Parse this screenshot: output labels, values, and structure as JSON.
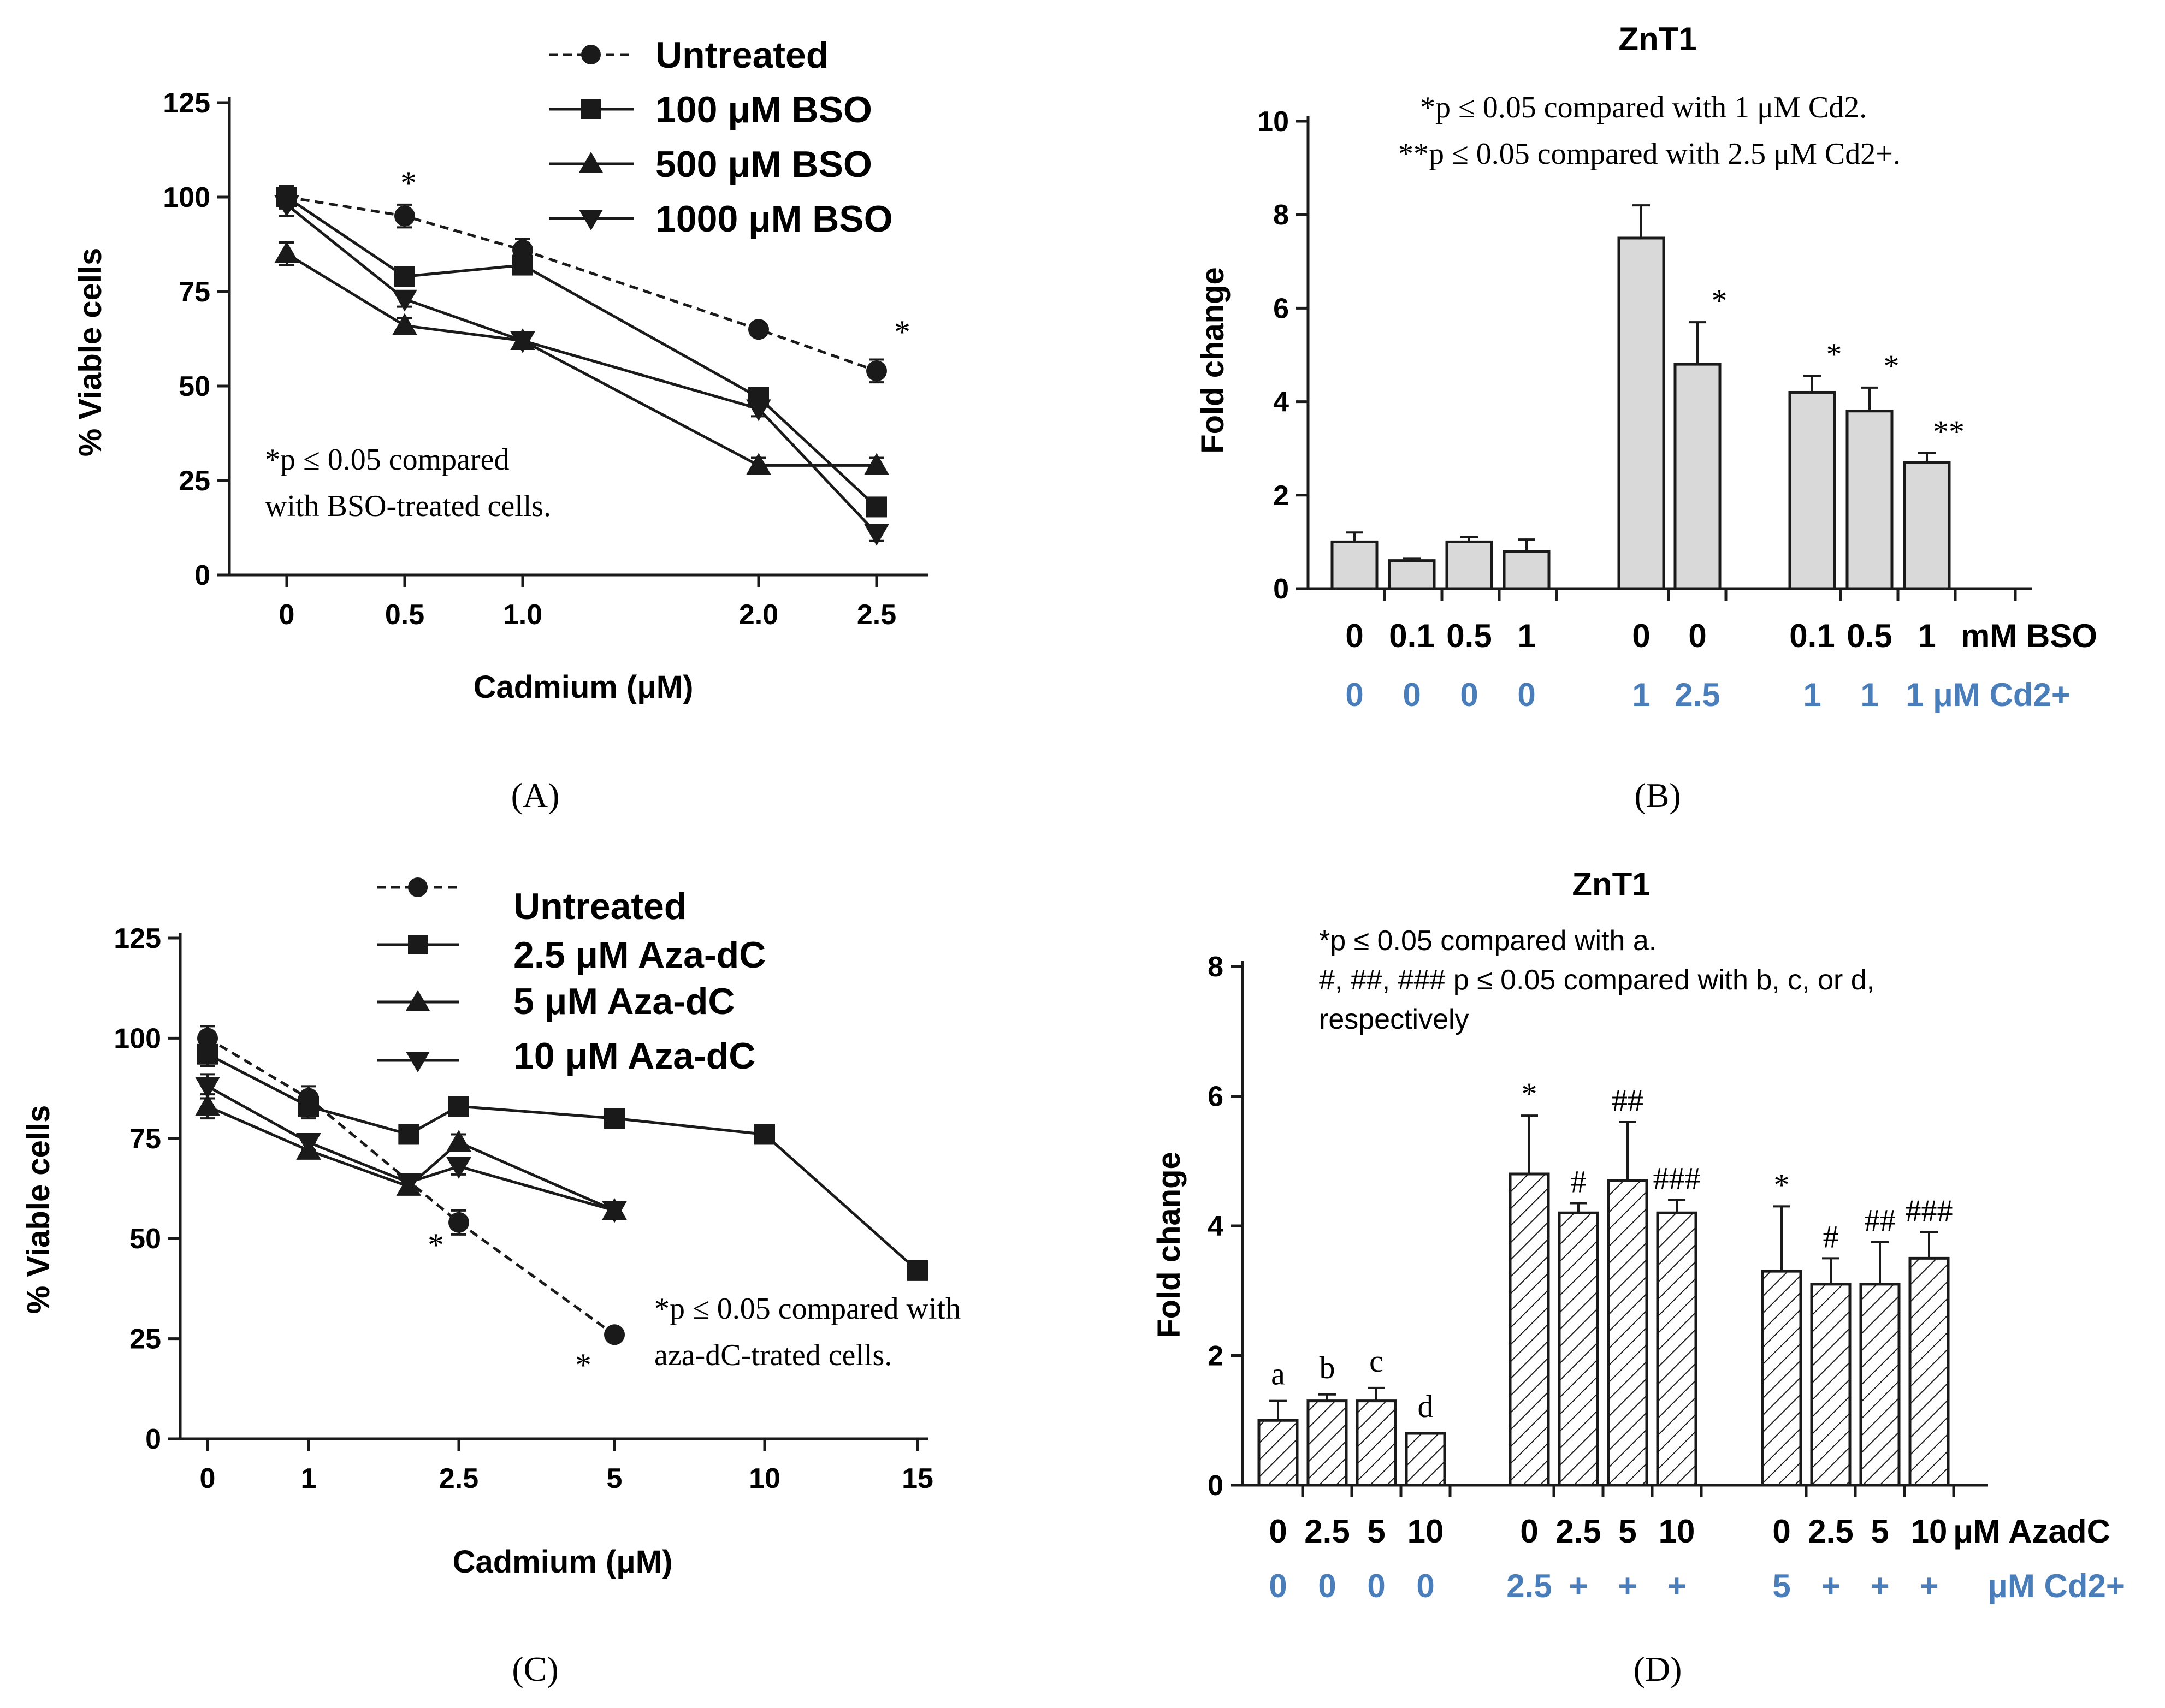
{
  "colors": {
    "ink": "#1a1a1a",
    "bar_fill": "#d9d9d9",
    "cd_label": "#4a7ebb"
  },
  "panels": {
    "A": {
      "label": "(A)",
      "annotation": [
        "*p ≤ 0.05 compared",
        "with BSO-treated cells."
      ],
      "star_marks": [
        "*",
        "*"
      ]
    },
    "B": {
      "label": "(B)",
      "annotation": [
        "*p ≤ 0.05 compared with 1 μM Cd2.",
        "**p ≤ 0.05 compared with 2.5 μM Cd2+."
      ],
      "bso_row": [
        "0",
        "0.1",
        "0.5",
        "1",
        "0",
        "0",
        "0.1",
        "0.5",
        "1",
        "mM BSO"
      ],
      "cd_row": [
        "0",
        "0",
        "0",
        "0",
        "1",
        "2.5",
        "1",
        "1",
        "1 μM Cd2+"
      ]
    },
    "C": {
      "label": "(C)",
      "annotation": [
        "*p ≤ 0.05 compared with",
        "aza-dC-trated cells."
      ],
      "star_marks": [
        "*",
        "*"
      ]
    },
    "D": {
      "label": "(D)",
      "annotation": [
        "*p ≤ 0.05 compared with a.",
        "#, ##, ### p ≤ 0.05 compared with b, c, or d,",
        "respectively"
      ],
      "aza_row": [
        "0",
        "2.5",
        "5",
        "10",
        "0",
        "2.5",
        "5",
        "10",
        "0",
        "2.5",
        "5",
        "10",
        "μM AzadC"
      ],
      "cd_row": [
        "0",
        "0",
        "0",
        "0",
        "2.5",
        "+",
        "+",
        "+",
        "5",
        "+",
        "+",
        "+",
        "μM Cd2+"
      ]
    }
  },
  "chart_data": [
    {
      "id": "A",
      "type": "line",
      "title": "",
      "xlabel": "Cadmium (μM)",
      "ylabel": "% Viable cells",
      "x": [
        0,
        0.5,
        1.0,
        2.0,
        2.5
      ],
      "x_tick_labels": [
        "0",
        "0.5",
        "1.0",
        "2.0",
        "2.5"
      ],
      "y_tick_labels": [
        "0",
        "25",
        "50",
        "75",
        "100",
        "125"
      ],
      "xlim": [
        -0.25,
        2.65
      ],
      "ylim": [
        0,
        125
      ],
      "legend_position": "top-right",
      "series": [
        {
          "name": "Untreated",
          "marker": "circle",
          "dashed": true,
          "values": [
            100,
            95,
            86,
            65,
            54
          ],
          "errors": [
            3,
            3,
            3,
            0,
            3
          ]
        },
        {
          "name": "100 μM BSO",
          "marker": "square",
          "dashed": false,
          "values": [
            100,
            79,
            82,
            47,
            18
          ],
          "errors": [
            3,
            2,
            2,
            2,
            2
          ]
        },
        {
          "name": "500 μM BSO",
          "marker": "triangle-up",
          "dashed": false,
          "values": [
            85,
            66,
            62,
            29,
            29
          ],
          "errors": [
            3,
            2,
            2,
            2,
            2
          ]
        },
        {
          "name": "1000 μM BSO",
          "marker": "triangle-down",
          "dashed": false,
          "values": [
            98,
            73,
            62,
            44,
            11
          ],
          "errors": [
            3,
            2,
            2,
            2,
            2
          ]
        }
      ]
    },
    {
      "id": "B",
      "type": "bar",
      "title": "ZnT1",
      "xlabel": "",
      "ylabel": "Fold change",
      "y_tick_labels": [
        "0",
        "2",
        "4",
        "6",
        "8",
        "10"
      ],
      "ylim": [
        0,
        10
      ],
      "values": [
        1.0,
        0.6,
        1.0,
        0.8,
        7.5,
        4.8,
        4.2,
        3.8,
        2.7
      ],
      "errors": [
        0.2,
        0.05,
        0.1,
        0.25,
        0.7,
        0.9,
        0.35,
        0.5,
        0.2
      ],
      "bar_marks": [
        "",
        "",
        "",
        "",
        "",
        "*",
        "*",
        "*",
        "**"
      ],
      "categories": [
        "0 BSO / 0 Cd",
        "0.1 BSO / 0 Cd",
        "0.5 BSO / 0 Cd",
        "1 BSO / 0 Cd",
        "0 BSO / 1 Cd",
        "0 BSO / 2.5 Cd",
        "0.1 BSO / 1 Cd",
        "0.5 BSO / 1 Cd",
        "1 BSO / 1 Cd"
      ]
    },
    {
      "id": "C",
      "type": "line",
      "title": "",
      "xlabel": "Cadmium (μM)",
      "ylabel": "% Viable cells",
      "x_tick_labels": [
        "0",
        "1",
        "2.5",
        "5",
        "10",
        "15"
      ],
      "y_tick_labels": [
        "0",
        "25",
        "50",
        "75",
        "100",
        "125"
      ],
      "ylim": [
        0,
        125
      ],
      "legend_position": "top-right",
      "series": [
        {
          "name": "Untreated",
          "marker": "circle",
          "dashed": true,
          "x": [
            0,
            1,
            2.5,
            5
          ],
          "values": [
            100,
            85,
            54,
            26
          ],
          "errors": [
            3,
            3,
            3,
            1
          ]
        },
        {
          "name": "2.5 μM Aza-dC",
          "marker": "square",
          "dashed": false,
          "x": [
            0,
            1,
            2,
            2.5,
            5,
            10,
            15
          ],
          "values": [
            96,
            83,
            76,
            83,
            80,
            76,
            42
          ],
          "errors": [
            3,
            3,
            2,
            2,
            2,
            2,
            2
          ]
        },
        {
          "name": "5 μM Aza-dC",
          "marker": "triangle-up",
          "dashed": false,
          "x": [
            0,
            1,
            2,
            2.5,
            5
          ],
          "values": [
            83,
            72,
            63,
            74,
            57
          ],
          "errors": [
            3,
            2,
            2,
            2,
            2
          ]
        },
        {
          "name": "10 μM Aza-dC",
          "marker": "triangle-down",
          "dashed": false,
          "x": [
            0,
            1,
            2,
            2.5,
            5
          ],
          "values": [
            88,
            74,
            64,
            68,
            57
          ],
          "errors": [
            3,
            2,
            2,
            2,
            2
          ]
        }
      ]
    },
    {
      "id": "D",
      "type": "bar",
      "title": "ZnT1",
      "xlabel": "",
      "ylabel": "Fold change",
      "y_tick_labels": [
        "0",
        "2",
        "4",
        "6",
        "8"
      ],
      "ylim": [
        0,
        8
      ],
      "values": [
        1.0,
        1.3,
        1.3,
        0.8,
        4.8,
        4.2,
        4.7,
        4.2,
        3.3,
        3.1,
        3.1,
        3.5
      ],
      "errors": [
        0.3,
        0.1,
        0.2,
        0.0,
        0.9,
        0.15,
        0.9,
        0.2,
        1.0,
        0.4,
        0.65,
        0.4
      ],
      "bar_marks": [
        "a",
        "b",
        "c",
        "d",
        "*",
        "#",
        "##",
        "###",
        "*",
        "#",
        "##",
        "###"
      ],
      "categories": [
        "0 AzadC / 0 Cd",
        "2.5 AzadC / 0 Cd",
        "5 AzadC / 0 Cd",
        "10 AzadC / 0 Cd",
        "0 AzadC / 2.5 Cd",
        "2.5 AzadC / 2.5 Cd",
        "5 AzadC / 2.5 Cd",
        "10 AzadC / 2.5 Cd",
        "0 AzadC / 5 Cd",
        "2.5 AzadC / 5 Cd",
        "5 AzadC / 5 Cd",
        "10 AzadC / 5 Cd"
      ]
    }
  ]
}
